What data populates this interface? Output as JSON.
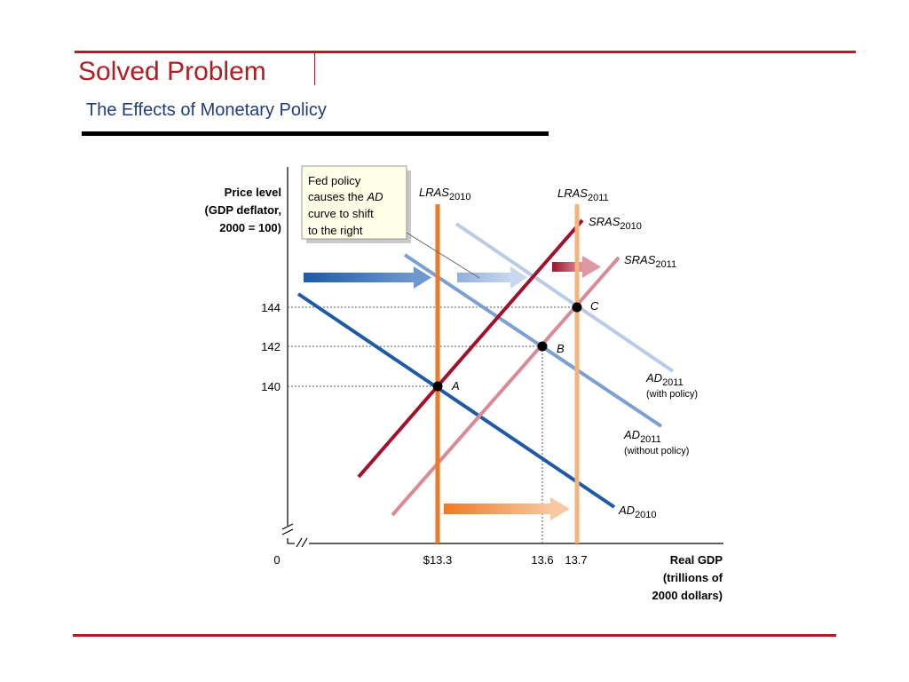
{
  "header": {
    "title": "Solved Problem",
    "subtitle": "The Effects of Monetary Policy"
  },
  "diagram": {
    "y_axis_label": [
      "Price level",
      "(GDP deflator,",
      "2000 = 100)"
    ],
    "x_axis_label": [
      "Real GDP",
      "(trillions of",
      "2000 dollars)"
    ],
    "origin": "0",
    "y_ticks": [
      "144",
      "142",
      "140"
    ],
    "x_ticks": [
      "$13.3",
      "13.6",
      "13.7"
    ],
    "callout": [
      "Fed policy",
      "causes the AD",
      "curve to shift",
      "to the right"
    ],
    "curves": {
      "lras_2010": {
        "base": "LRAS",
        "sub": "2010"
      },
      "lras_2011": {
        "base": "LRAS",
        "sub": "2011"
      },
      "sras_2010": {
        "base": "SRAS",
        "sub": "2010"
      },
      "sras_2011": {
        "base": "SRAS",
        "sub": "2011"
      },
      "ad_2010": {
        "base": "AD",
        "sub": "2010"
      },
      "ad_2011_with": {
        "base": "AD",
        "sub": "2011",
        "note": "(with policy)"
      },
      "ad_2011_without": {
        "base": "AD",
        "sub": "2011",
        "note": "(without policy)"
      }
    },
    "points": [
      "A",
      "B",
      "C"
    ],
    "colors": {
      "lras_2010": "#f07a24",
      "lras_2011": "#f5b27a",
      "sras_2010": "#a0112e",
      "sras_2011": "#d98a94",
      "ad_2010": "#1f5aa6",
      "ad_2011_without": "#7b9fd0",
      "ad_2011_with": "#b9cbe6",
      "title_red": "#b01e23",
      "subtitle_blue": "#1f3d7a"
    }
  }
}
